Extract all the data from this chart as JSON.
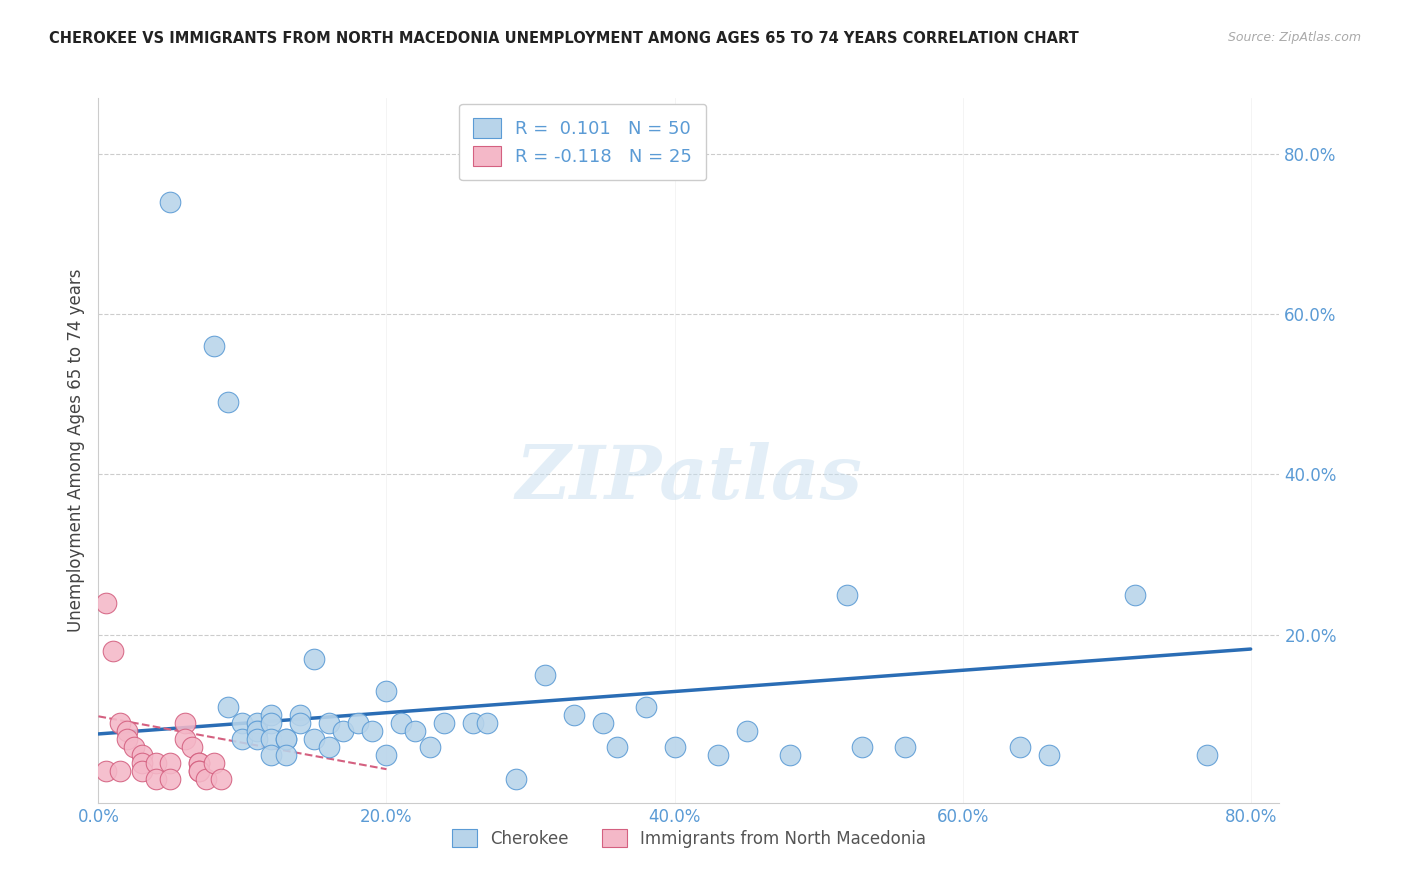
{
  "title": "CHEROKEE VS IMMIGRANTS FROM NORTH MACEDONIA UNEMPLOYMENT AMONG AGES 65 TO 74 YEARS CORRELATION CHART",
  "source": "Source: ZipAtlas.com",
  "ylabel": "Unemployment Among Ages 65 to 74 years",
  "xlim": [
    0,
    0.82
  ],
  "ylim": [
    -0.01,
    0.87
  ],
  "xticks": [
    0.0,
    0.2,
    0.4,
    0.6,
    0.8
  ],
  "yticks": [
    0.0,
    0.2,
    0.4,
    0.6,
    0.8
  ],
  "xtick_labels": [
    "0.0%",
    "20.0%",
    "40.0%",
    "60.0%",
    "80.0%"
  ],
  "ytick_labels": [
    "",
    "20.0%",
    "40.0%",
    "60.0%",
    "80.0%"
  ],
  "watermark": "ZIPatlas",
  "R1": 0.101,
  "N1": 50,
  "R2": -0.118,
  "N2": 25,
  "blue_color": "#b8d4ea",
  "blue_edge": "#5b9bd5",
  "pink_color": "#f4b8c8",
  "pink_edge": "#d46080",
  "trend_blue_color": "#2a6db5",
  "trend_pink_color": "#d46080",
  "grid_color": "#cccccc",
  "title_color": "#222222",
  "axis_tick_color": "#5b9bd5",
  "blue_scatter_x": [
    0.05,
    0.08,
    0.09,
    0.09,
    0.1,
    0.1,
    0.11,
    0.11,
    0.11,
    0.12,
    0.12,
    0.12,
    0.12,
    0.13,
    0.13,
    0.13,
    0.14,
    0.14,
    0.15,
    0.15,
    0.16,
    0.16,
    0.17,
    0.18,
    0.19,
    0.2,
    0.2,
    0.21,
    0.22,
    0.23,
    0.24,
    0.26,
    0.27,
    0.29,
    0.31,
    0.33,
    0.35,
    0.36,
    0.38,
    0.4,
    0.43,
    0.45,
    0.48,
    0.52,
    0.53,
    0.56,
    0.64,
    0.66,
    0.72,
    0.77
  ],
  "blue_scatter_y": [
    0.74,
    0.56,
    0.49,
    0.11,
    0.09,
    0.07,
    0.09,
    0.08,
    0.07,
    0.1,
    0.09,
    0.07,
    0.05,
    0.07,
    0.07,
    0.05,
    0.1,
    0.09,
    0.17,
    0.07,
    0.09,
    0.06,
    0.08,
    0.09,
    0.08,
    0.13,
    0.05,
    0.09,
    0.08,
    0.06,
    0.09,
    0.09,
    0.09,
    0.02,
    0.15,
    0.1,
    0.09,
    0.06,
    0.11,
    0.06,
    0.05,
    0.08,
    0.05,
    0.25,
    0.06,
    0.06,
    0.06,
    0.05,
    0.25,
    0.05
  ],
  "pink_scatter_x": [
    0.005,
    0.01,
    0.015,
    0.02,
    0.02,
    0.025,
    0.03,
    0.03,
    0.03,
    0.04,
    0.04,
    0.05,
    0.05,
    0.06,
    0.06,
    0.065,
    0.07,
    0.07,
    0.07,
    0.07,
    0.075,
    0.08,
    0.085,
    0.005,
    0.015
  ],
  "pink_scatter_y": [
    0.24,
    0.18,
    0.09,
    0.08,
    0.07,
    0.06,
    0.05,
    0.04,
    0.03,
    0.04,
    0.02,
    0.04,
    0.02,
    0.09,
    0.07,
    0.06,
    0.04,
    0.04,
    0.03,
    0.03,
    0.02,
    0.04,
    0.02,
    0.03,
    0.03
  ],
  "blue_trend_x": [
    0.0,
    0.8
  ],
  "blue_trend_y": [
    0.076,
    0.182
  ],
  "pink_trend_x": [
    0.0,
    0.2
  ],
  "pink_trend_y": [
    0.098,
    0.032
  ]
}
